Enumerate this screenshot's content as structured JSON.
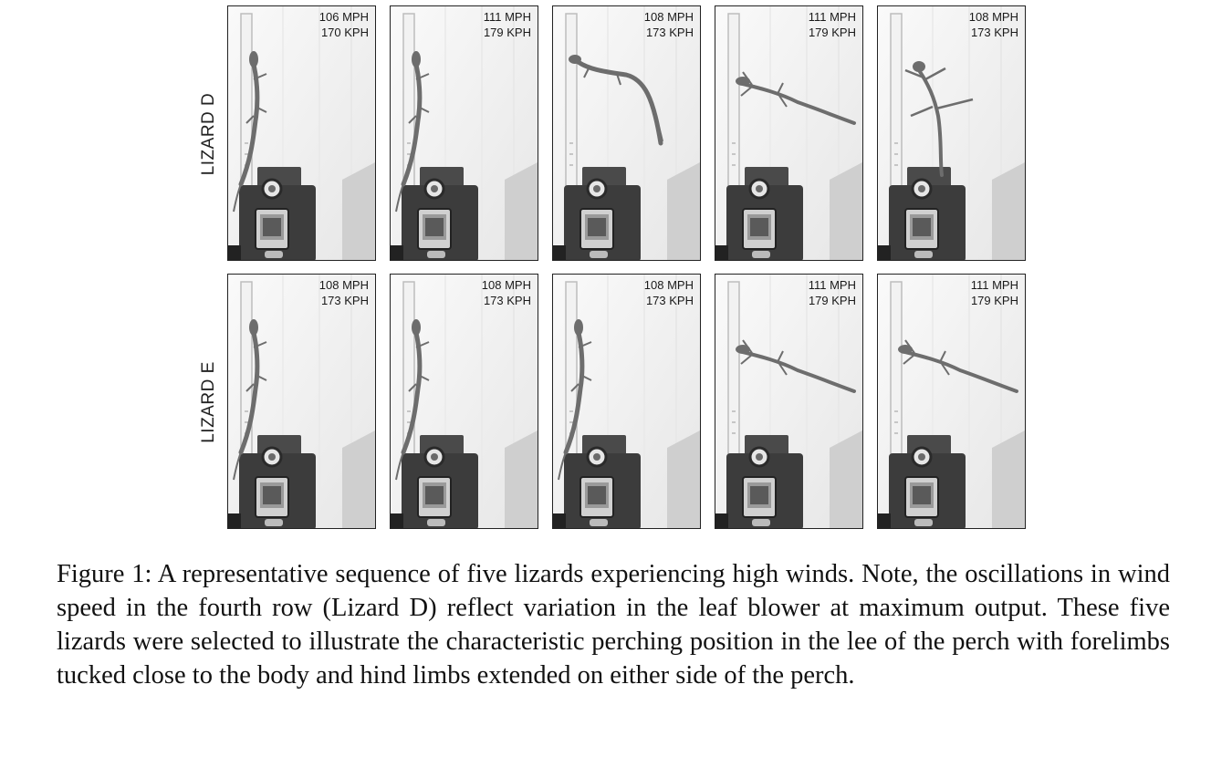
{
  "figure": {
    "rows": [
      {
        "label": "LIZARD D",
        "panels": [
          {
            "mph": "106 MPH",
            "kph": "170 KPH",
            "pose": "clinging"
          },
          {
            "mph": "111 MPH",
            "kph": "179 KPH",
            "pose": "clinging"
          },
          {
            "mph": "108 MPH",
            "kph": "173 KPH",
            "pose": "lifting"
          },
          {
            "mph": "111 MPH",
            "kph": "179 KPH",
            "pose": "flying"
          },
          {
            "mph": "108 MPH",
            "kph": "173 KPH",
            "pose": "spread"
          }
        ]
      },
      {
        "label": "LIZARD E",
        "panels": [
          {
            "mph": "108 MPH",
            "kph": "173 KPH",
            "pose": "clinging"
          },
          {
            "mph": "108 MPH",
            "kph": "173 KPH",
            "pose": "clinging"
          },
          {
            "mph": "108 MPH",
            "kph": "173 KPH",
            "pose": "clinging"
          },
          {
            "mph": "111 MPH",
            "kph": "179 KPH",
            "pose": "flying"
          },
          {
            "mph": "111 MPH",
            "kph": "179 KPH",
            "pose": "flying"
          }
        ]
      }
    ],
    "caption": "Figure 1: A representative sequence of five lizards experiencing high winds. Note, the oscillations in wind speed in the fourth row (Lizard D) reflect variation in the leaf blower at maximum output. These five lizards were selected to illustrate the characteristic perching position in the lee of the perch with forelimbs tucked close to the body and hind limbs extended on either side of the perch."
  }
}
